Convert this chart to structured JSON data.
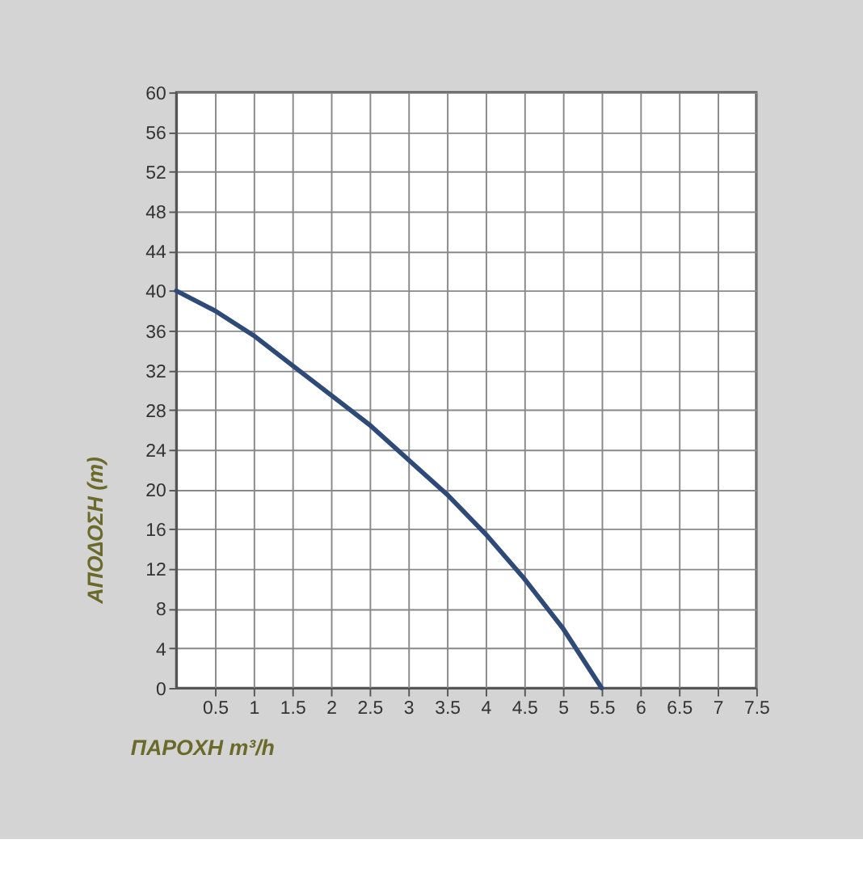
{
  "chart_data": {
    "type": "line",
    "xlabel": "ΠΑΡΟΧΗ m³/h",
    "ylabel": "ΑΠΟΔΟΣΗ (m)",
    "x": [
      0,
      0.5,
      1,
      1.5,
      2,
      2.5,
      3,
      3.5,
      4,
      4.5,
      5,
      5.5
    ],
    "series": [
      {
        "color": "#2e4a78",
        "values": [
          40,
          38,
          35.5,
          32.5,
          29.5,
          26.5,
          23,
          19.5,
          15.5,
          11,
          6,
          0
        ]
      }
    ],
    "xlim": [
      0,
      7.5
    ],
    "xticks": [
      0.5,
      1,
      1.5,
      2,
      2.5,
      3,
      3.5,
      4,
      4.5,
      5,
      5.5,
      6,
      6.5,
      7,
      7.5
    ],
    "ylim": [
      0,
      60
    ],
    "yticks": [
      0,
      4,
      8,
      12,
      16,
      20,
      24,
      28,
      32,
      36,
      40,
      44,
      48,
      52,
      56,
      60
    ],
    "grid": true,
    "marker": "none",
    "line_style": "solid"
  }
}
